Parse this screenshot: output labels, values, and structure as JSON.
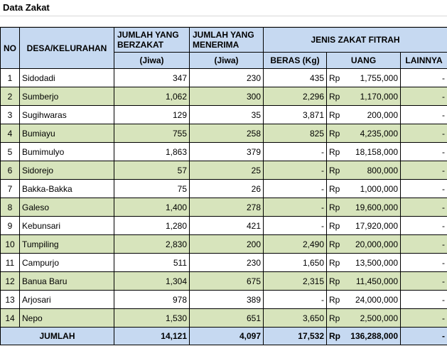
{
  "title": "Data Zakat",
  "headers": {
    "no": "NO",
    "desa": "DESA/KELURAHAN",
    "jumlah_berzakat": "JUMLAH YANG BERZAKAT",
    "jumlah_menerima": "JUMLAH YANG MENERIMA",
    "jenis": "JENIS ZAKAT FITRAH",
    "jiwa1": "(Jiwa)",
    "jiwa2": "(Jiwa)",
    "beras": "BERAS (Kg)",
    "uang": "UANG",
    "lainnya": "LAINNYA"
  },
  "currency": "Rp",
  "rows": [
    {
      "no": "1",
      "desa": "Sidodadi",
      "berzakat": "347",
      "menerima": "230",
      "beras": "435",
      "uang": "1,755,000",
      "lainnya": "-"
    },
    {
      "no": "2",
      "desa": "Sumberjo",
      "berzakat": "1,062",
      "menerima": "300",
      "beras": "2,296",
      "uang": "1,170,000",
      "lainnya": "-"
    },
    {
      "no": "3",
      "desa": "Sugihwaras",
      "berzakat": "129",
      "menerima": "35",
      "beras": "3,871",
      "uang": "200,000",
      "lainnya": "-"
    },
    {
      "no": "4",
      "desa": "Bumiayu",
      "berzakat": "755",
      "menerima": "258",
      "beras": "825",
      "uang": "4,235,000",
      "lainnya": "-"
    },
    {
      "no": "5",
      "desa": "Bumimulyo",
      "berzakat": "1,863",
      "menerima": "379",
      "beras": "-",
      "uang": "18,158,000",
      "lainnya": "-"
    },
    {
      "no": "6",
      "desa": "Sidorejo",
      "berzakat": "57",
      "menerima": "25",
      "beras": "-",
      "uang": "800,000",
      "lainnya": "-"
    },
    {
      "no": "7",
      "desa": "Bakka-Bakka",
      "berzakat": "75",
      "menerima": "26",
      "beras": "-",
      "uang": "1,000,000",
      "lainnya": "-"
    },
    {
      "no": "8",
      "desa": "Galeso",
      "berzakat": "1,400",
      "menerima": "278",
      "beras": "-",
      "uang": "19,600,000",
      "lainnya": "-"
    },
    {
      "no": "9",
      "desa": "Kebunsari",
      "berzakat": "1,280",
      "menerima": "421",
      "beras": "-",
      "uang": "17,920,000",
      "lainnya": "-"
    },
    {
      "no": "10",
      "desa": "Tumpiling",
      "berzakat": "2,830",
      "menerima": "200",
      "beras": "2,490",
      "uang": "20,000,000",
      "lainnya": "-"
    },
    {
      "no": "11",
      "desa": "Campurjo",
      "berzakat": "511",
      "menerima": "230",
      "beras": "1,650",
      "uang": "13,500,000",
      "lainnya": "-"
    },
    {
      "no": "12",
      "desa": "Banua Baru",
      "berzakat": "1,304",
      "menerima": "675",
      "beras": "2,315",
      "uang": "11,450,000",
      "lainnya": "-"
    },
    {
      "no": "13",
      "desa": "Arjosari",
      "berzakat": "978",
      "menerima": "389",
      "beras": "-",
      "uang": "24,000,000",
      "lainnya": "-"
    },
    {
      "no": "14",
      "desa": "Nepo",
      "berzakat": "1,530",
      "menerima": "651",
      "beras": "3,650",
      "uang": "2,500,000",
      "lainnya": "-"
    }
  ],
  "total": {
    "label": "JUMLAH",
    "berzakat": "14,121",
    "menerima": "4,097",
    "beras": "17,532",
    "currency": "Rp",
    "uang": "136,288,000",
    "lainnya": "-"
  }
}
